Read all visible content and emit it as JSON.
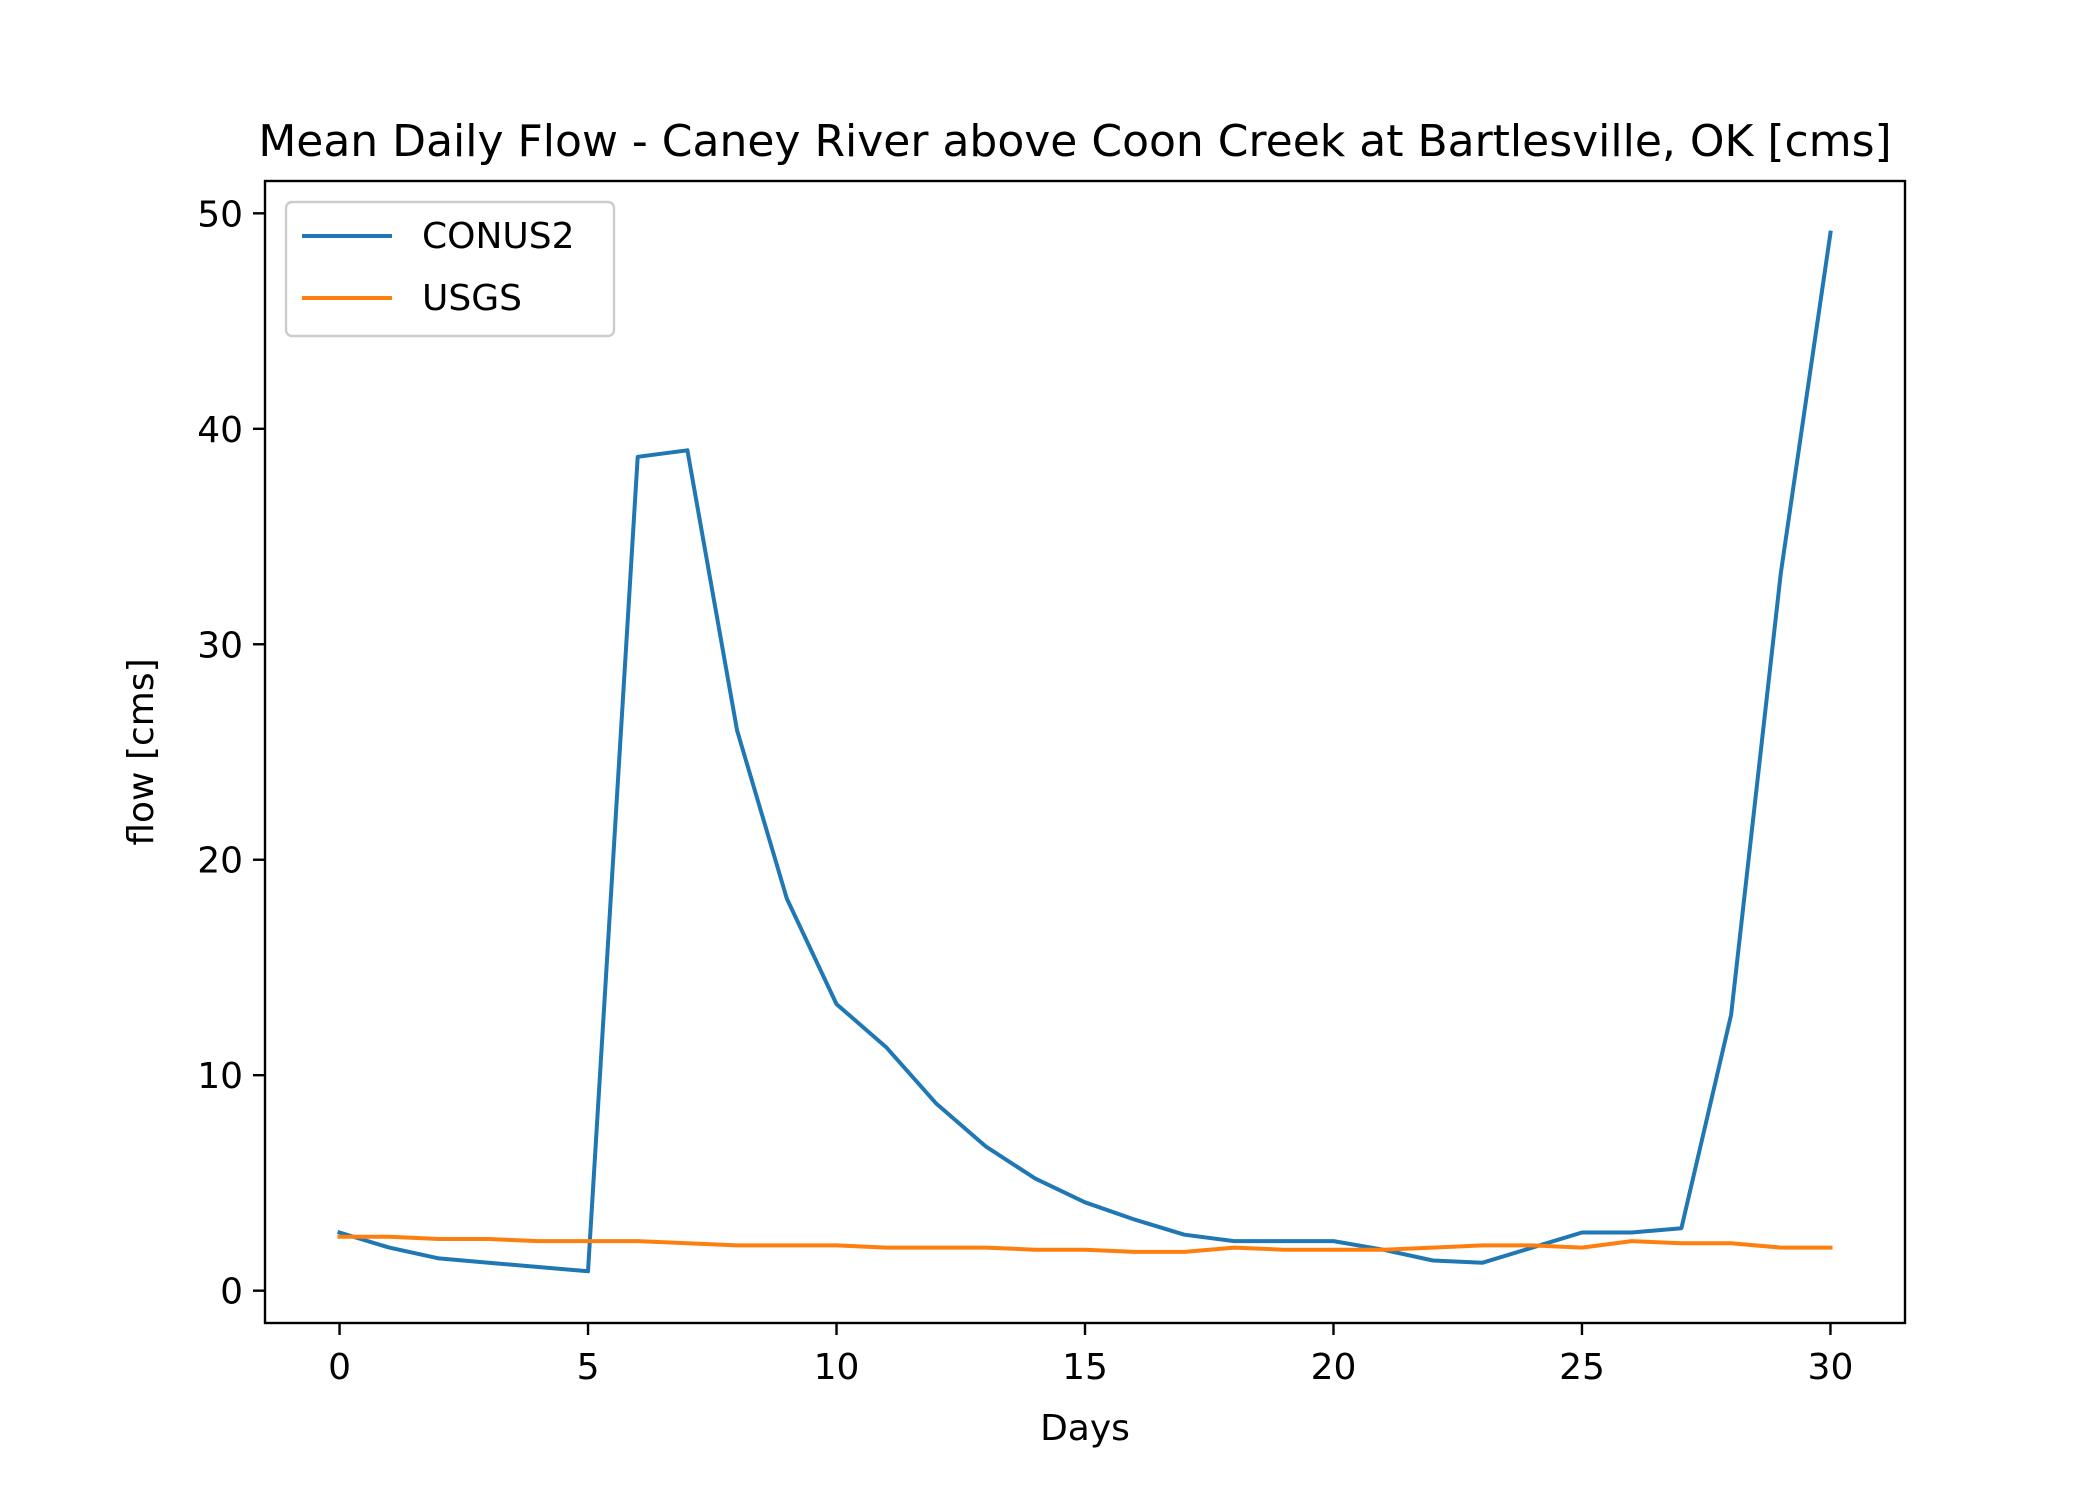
{
  "chart_data": {
    "type": "line",
    "title": "Mean Daily Flow - Caney River above Coon Creek at Bartlesville, OK [cms]",
    "xlabel": "Days",
    "ylabel": "flow [cms]",
    "xlim": [
      -1.5,
      31.5
    ],
    "ylim": [
      -1.5,
      51.5
    ],
    "xticks": [
      0,
      5,
      10,
      15,
      20,
      25,
      30
    ],
    "yticks": [
      0,
      10,
      20,
      30,
      40,
      50
    ],
    "grid": false,
    "legend_position": "upper-left",
    "x": [
      0,
      1,
      2,
      3,
      4,
      5,
      6,
      7,
      8,
      9,
      10,
      11,
      12,
      13,
      14,
      15,
      16,
      17,
      18,
      19,
      20,
      21,
      22,
      23,
      24,
      25,
      26,
      27,
      28,
      29,
      30
    ],
    "series": [
      {
        "name": "CONUS2",
        "color": "#1f77b4",
        "values": [
          2.7,
          2.0,
          1.5,
          1.3,
          1.1,
          0.9,
          38.7,
          39.0,
          26.0,
          18.2,
          13.3,
          11.3,
          8.7,
          6.7,
          5.2,
          4.1,
          3.3,
          2.6,
          2.3,
          2.3,
          2.3,
          1.9,
          1.4,
          1.3,
          2.0,
          2.7,
          2.7,
          2.9,
          12.8,
          33.3,
          49.1
        ]
      },
      {
        "name": "USGS",
        "color": "#ff7f0e",
        "values": [
          2.5,
          2.5,
          2.4,
          2.4,
          2.3,
          2.3,
          2.3,
          2.2,
          2.1,
          2.1,
          2.1,
          2.0,
          2.0,
          2.0,
          1.9,
          1.9,
          1.8,
          1.8,
          2.0,
          1.9,
          1.9,
          1.9,
          2.0,
          2.1,
          2.1,
          2.0,
          2.3,
          2.2,
          2.2,
          2.0,
          2.0
        ]
      }
    ]
  }
}
